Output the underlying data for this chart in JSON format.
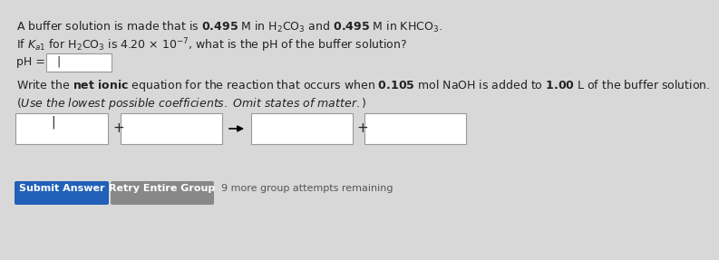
{
  "bg_color": "#d8d8d8",
  "line1": "A buffer solution is made that is $\\mathbf{0.495}$ M in H$_2$CO$_3$ and $\\mathbf{0.495}$ M in KHCO$_3$.",
  "line2": "If $K_{a1}$ for H$_2$CO$_3$ is 4.20 $\\times$ 10$^{-7}$, what is the pH of the buffer solution?",
  "ph_label": "pH =",
  "line4": "Write the $\\bf{net\\ ionic}$ equation for the reaction that occurs when $\\mathbf{0.105}$ mol NaOH is added to $\\mathbf{1.00}$ L of the buffer solution.",
  "line5": "$(Use\\ the\\ lowest\\ possible\\ coefficients.\\ Omit\\ states\\ of\\ matter.)$",
  "submit_btn_color": "#2060b8",
  "retry_btn_color": "#888888",
  "submit_text": "Submit Answer",
  "retry_text": "Retry Entire Group",
  "remaining_text": "9 more group attempts remaining",
  "font_size": 9.0,
  "small_font": 8.0,
  "text_color": "#222222"
}
